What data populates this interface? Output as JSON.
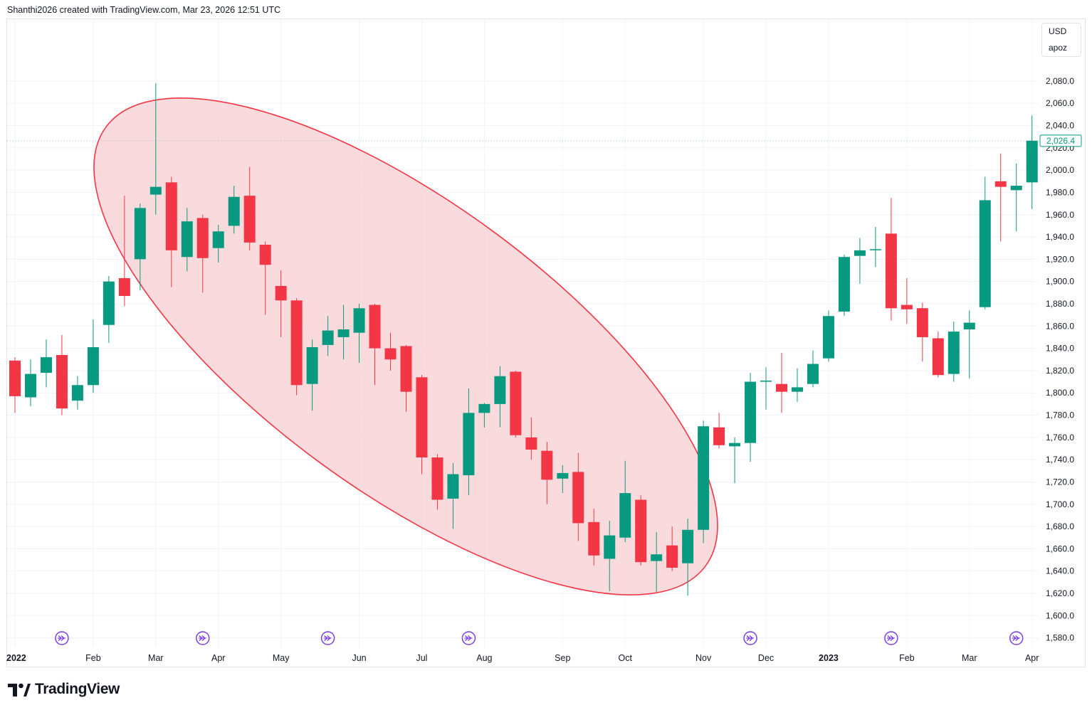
{
  "header": {
    "caption": "Shanthi2026 created with TradingView.com, Mar 23, 2026 12:51 UTC"
  },
  "legend": {
    "currency": "USD",
    "unit": "apoz"
  },
  "branding": {
    "logo_text": "TradingView",
    "logo_icon": "tradingview-logo-icon"
  },
  "colors": {
    "up": "#089981",
    "down": "#f23645",
    "ellipse_fill": "#f8d2d6",
    "ellipse_stroke": "#f23645",
    "event_icon": "#7b3fe4",
    "price_label": "#089981",
    "grid": "#f0f3fa"
  },
  "icons": {
    "event_marker": "fast-forward-circle-icon"
  },
  "chart_data": {
    "type": "candlestick",
    "interval": "weekly",
    "y_axis": {
      "min": 1570,
      "max": 2120,
      "ticks": [
        1580,
        1600,
        1620,
        1640,
        1660,
        1680,
        1700,
        1720,
        1740,
        1760,
        1780,
        1800,
        1820,
        1840,
        1860,
        1880,
        1900,
        1920,
        1940,
        1960,
        1980,
        2000,
        2020,
        2040,
        2060,
        2080
      ],
      "tick_labels": [
        "1,580.0",
        "1,600.0",
        "1,620.0",
        "1,640.0",
        "1,660.0",
        "1,680.0",
        "1,700.0",
        "1,720.0",
        "1,740.0",
        "1,760.0",
        "1,780.0",
        "1,800.0",
        "1,820.0",
        "1,840.0",
        "1,860.0",
        "1,880.0",
        "1,900.0",
        "1,920.0",
        "1,940.0",
        "1,960.0",
        "1,980.0",
        "2,000.0",
        "2,020.0",
        "2,040.0",
        "2,060.0",
        "2,080.0"
      ]
    },
    "x_axis": {
      "labels": [
        {
          "label": "2022",
          "index": 0,
          "bold": true
        },
        {
          "label": "Feb",
          "index": 5,
          "bold": false
        },
        {
          "label": "Mar",
          "index": 9,
          "bold": false
        },
        {
          "label": "Apr",
          "index": 13,
          "bold": false
        },
        {
          "label": "May",
          "index": 17,
          "bold": false
        },
        {
          "label": "Jun",
          "index": 22,
          "bold": false
        },
        {
          "label": "Jul",
          "index": 26,
          "bold": false
        },
        {
          "label": "Aug",
          "index": 30,
          "bold": false
        },
        {
          "label": "Sep",
          "index": 35,
          "bold": false
        },
        {
          "label": "Oct",
          "index": 39,
          "bold": false
        },
        {
          "label": "Nov",
          "index": 44,
          "bold": false
        },
        {
          "label": "Dec",
          "index": 48,
          "bold": false
        },
        {
          "label": "2023",
          "index": 52,
          "bold": true
        },
        {
          "label": "Feb",
          "index": 57,
          "bold": false
        },
        {
          "label": "Mar",
          "index": 61,
          "bold": false
        },
        {
          "label": "Apr",
          "index": 65,
          "bold": false
        }
      ]
    },
    "last_price": {
      "value": 2026.4,
      "label": "2,026.4"
    },
    "event_marker_indices": [
      3,
      12,
      20,
      29,
      47,
      56,
      64
    ],
    "annotation": {
      "shape": "ellipse",
      "from_index": 6,
      "to_index": 44,
      "description": "highlighted decline"
    },
    "candles": [
      {
        "o": 1829,
        "h": 1832,
        "l": 1782,
        "c": 1797
      },
      {
        "o": 1796,
        "h": 1830,
        "l": 1788,
        "c": 1817
      },
      {
        "o": 1818,
        "h": 1848,
        "l": 1805,
        "c": 1832
      },
      {
        "o": 1834,
        "h": 1852,
        "l": 1780,
        "c": 1786
      },
      {
        "o": 1793,
        "h": 1815,
        "l": 1785,
        "c": 1807
      },
      {
        "o": 1807,
        "h": 1866,
        "l": 1800,
        "c": 1841
      },
      {
        "o": 1861,
        "h": 1905,
        "l": 1845,
        "c": 1900
      },
      {
        "o": 1903,
        "h": 1977,
        "l": 1878,
        "c": 1887
      },
      {
        "o": 1920,
        "h": 1970,
        "l": 1892,
        "c": 1966
      },
      {
        "o": 1978,
        "h": 2078,
        "l": 1960,
        "c": 1985
      },
      {
        "o": 1989,
        "h": 1994,
        "l": 1895,
        "c": 1928
      },
      {
        "o": 1922,
        "h": 1966,
        "l": 1909,
        "c": 1954
      },
      {
        "o": 1957,
        "h": 1960,
        "l": 1890,
        "c": 1921
      },
      {
        "o": 1930,
        "h": 1951,
        "l": 1917,
        "c": 1945
      },
      {
        "o": 1950,
        "h": 1986,
        "l": 1943,
        "c": 1976
      },
      {
        "o": 1977,
        "h": 2003,
        "l": 1928,
        "c": 1935
      },
      {
        "o": 1933,
        "h": 1936,
        "l": 1870,
        "c": 1915
      },
      {
        "o": 1896,
        "h": 1910,
        "l": 1850,
        "c": 1883
      },
      {
        "o": 1883,
        "h": 1885,
        "l": 1798,
        "c": 1807
      },
      {
        "o": 1808,
        "h": 1848,
        "l": 1784,
        "c": 1841
      },
      {
        "o": 1843,
        "h": 1869,
        "l": 1833,
        "c": 1856
      },
      {
        "o": 1850,
        "h": 1879,
        "l": 1830,
        "c": 1857
      },
      {
        "o": 1854,
        "h": 1880,
        "l": 1827,
        "c": 1876
      },
      {
        "o": 1879,
        "h": 1880,
        "l": 1807,
        "c": 1840
      },
      {
        "o": 1840,
        "h": 1854,
        "l": 1820,
        "c": 1830
      },
      {
        "o": 1842,
        "h": 1843,
        "l": 1783,
        "c": 1801
      },
      {
        "o": 1814,
        "h": 1816,
        "l": 1727,
        "c": 1742
      },
      {
        "o": 1742,
        "h": 1745,
        "l": 1695,
        "c": 1704
      },
      {
        "o": 1705,
        "h": 1737,
        "l": 1678,
        "c": 1727
      },
      {
        "o": 1726,
        "h": 1804,
        "l": 1708,
        "c": 1782
      },
      {
        "o": 1782,
        "h": 1791,
        "l": 1769,
        "c": 1790
      },
      {
        "o": 1790,
        "h": 1824,
        "l": 1769,
        "c": 1815
      },
      {
        "o": 1819,
        "h": 1820,
        "l": 1760,
        "c": 1762
      },
      {
        "o": 1760,
        "h": 1778,
        "l": 1740,
        "c": 1749
      },
      {
        "o": 1748,
        "h": 1756,
        "l": 1700,
        "c": 1722
      },
      {
        "o": 1723,
        "h": 1735,
        "l": 1710,
        "c": 1728
      },
      {
        "o": 1729,
        "h": 1746,
        "l": 1667,
        "c": 1683
      },
      {
        "o": 1684,
        "h": 1696,
        "l": 1645,
        "c": 1654
      },
      {
        "o": 1651,
        "h": 1685,
        "l": 1622,
        "c": 1672
      },
      {
        "o": 1670,
        "h": 1739,
        "l": 1666,
        "c": 1710
      },
      {
        "o": 1704,
        "h": 1708,
        "l": 1645,
        "c": 1648
      },
      {
        "o": 1649,
        "h": 1675,
        "l": 1621,
        "c": 1655
      },
      {
        "o": 1663,
        "h": 1680,
        "l": 1640,
        "c": 1643
      },
      {
        "o": 1647,
        "h": 1687,
        "l": 1618,
        "c": 1677
      },
      {
        "o": 1677,
        "h": 1775,
        "l": 1665,
        "c": 1770
      },
      {
        "o": 1769,
        "h": 1782,
        "l": 1750,
        "c": 1753
      },
      {
        "o": 1752,
        "h": 1760,
        "l": 1719,
        "c": 1755
      },
      {
        "o": 1755,
        "h": 1818,
        "l": 1738,
        "c": 1810
      },
      {
        "o": 1810,
        "h": 1823,
        "l": 1785,
        "c": 1811
      },
      {
        "o": 1808,
        "h": 1836,
        "l": 1782,
        "c": 1801
      },
      {
        "o": 1801,
        "h": 1822,
        "l": 1792,
        "c": 1805
      },
      {
        "o": 1808,
        "h": 1838,
        "l": 1805,
        "c": 1826
      },
      {
        "o": 1831,
        "h": 1874,
        "l": 1828,
        "c": 1869
      },
      {
        "o": 1873,
        "h": 1924,
        "l": 1869,
        "c": 1922
      },
      {
        "o": 1923,
        "h": 1939,
        "l": 1898,
        "c": 1928
      },
      {
        "o": 1929,
        "h": 1949,
        "l": 1913,
        "c": 1929
      },
      {
        "o": 1943,
        "h": 1975,
        "l": 1865,
        "c": 1876
      },
      {
        "o": 1879,
        "h": 1903,
        "l": 1862,
        "c": 1875
      },
      {
        "o": 1876,
        "h": 1881,
        "l": 1828,
        "c": 1850
      },
      {
        "o": 1849,
        "h": 1855,
        "l": 1814,
        "c": 1816
      },
      {
        "o": 1817,
        "h": 1864,
        "l": 1810,
        "c": 1855
      },
      {
        "o": 1857,
        "h": 1874,
        "l": 1813,
        "c": 1863
      },
      {
        "o": 1877,
        "h": 1994,
        "l": 1875,
        "c": 1973
      },
      {
        "o": 1990,
        "h": 2015,
        "l": 1936,
        "c": 1985
      },
      {
        "o": 1982,
        "h": 2006,
        "l": 1945,
        "c": 1986
      },
      {
        "o": 1989,
        "h": 2049,
        "l": 1965,
        "c": 2026.4
      }
    ]
  }
}
